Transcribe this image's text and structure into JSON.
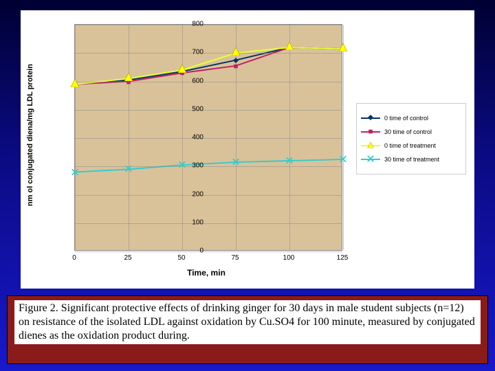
{
  "chart": {
    "type": "line",
    "background_color": "#ffffff",
    "plot_background_color": "#d9c29a",
    "grid_color": "#888888",
    "x": {
      "label": "Time, min",
      "min": 0,
      "max": 125,
      "ticks": [
        0,
        25,
        50,
        75,
        100,
        125
      ]
    },
    "y": {
      "label": "nm ol conjugated diena/mg LDL protein",
      "min": 0,
      "max": 800,
      "ticks": [
        0,
        100,
        200,
        300,
        400,
        500,
        600,
        700,
        800
      ]
    },
    "series": [
      {
        "name": "0 time of control",
        "line_color": "#003366",
        "marker_shape": "diamond",
        "marker_color": "#003366",
        "marker_size": 8,
        "xs": [
          0,
          25,
          50,
          75,
          100,
          125
        ],
        "ys": [
          590,
          605,
          635,
          675,
          720,
          715
        ]
      },
      {
        "name": "30 time of control",
        "line_color": "#c02060",
        "marker_shape": "square",
        "marker_color": "#c02060",
        "marker_size": 7,
        "xs": [
          0,
          25,
          50,
          75,
          100,
          125
        ],
        "ys": [
          590,
          600,
          630,
          655,
          720,
          715
        ]
      },
      {
        "name": "0 time of treatment",
        "line_color": "#e6ff33",
        "marker_shape": "triangle",
        "marker_color": "#ffff00",
        "marker_size": 12,
        "xs": [
          0,
          25,
          50,
          75,
          100,
          125
        ],
        "ys": [
          590,
          610,
          640,
          700,
          720,
          715
        ]
      },
      {
        "name": "30 time of treatment",
        "line_color": "#33cccc",
        "marker_shape": "cross",
        "marker_color": "#33cccc",
        "marker_size": 9,
        "xs": [
          0,
          25,
          50,
          75,
          100,
          125
        ],
        "ys": [
          280,
          290,
          305,
          315,
          320,
          325
        ]
      }
    ],
    "legend": {
      "position": "right",
      "border_color": "#cccccc",
      "font_size": 9
    }
  },
  "caption": "Figure 2. Significant protective effects of drinking ginger for 30 days in male student subjects (n=12) on resistance of the isolated LDL against oxidation by Cu.SO4 for 100 minute, measured by conjugated dienes as the oxidation product during.",
  "caption_box_color": "#8b1a1a",
  "slide_bg_gradient": [
    "#000033",
    "#1818cc"
  ]
}
